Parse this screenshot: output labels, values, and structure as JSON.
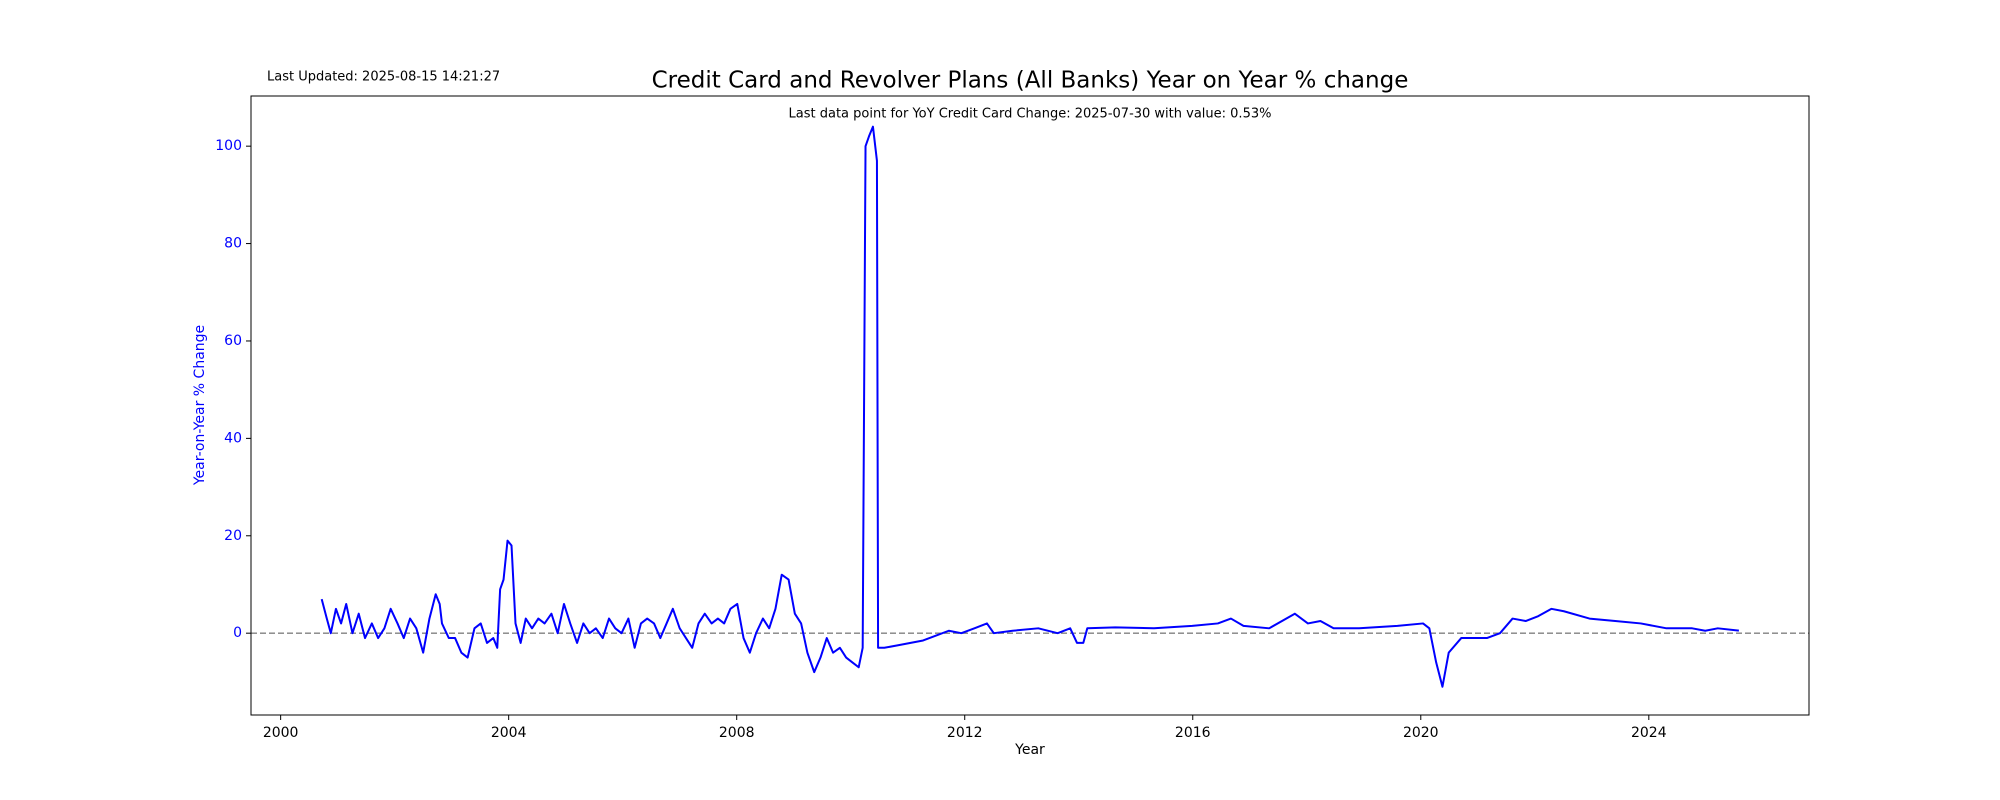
{
  "chart_data": {
    "type": "line",
    "title": "Credit Card and Revolver Plans (All Banks) Year on Year % change",
    "last_updated": "Last Updated: 2025-08-15 14:21:27",
    "annotation": "Last data point for YoY Credit Card Change: 2025-07-30 with value: 0.53%",
    "x_label": "Year",
    "y_label": "Year-on-Year % Change",
    "x": [
      2000.72,
      2000.81,
      2000.88,
      2000.97,
      2001.06,
      2001.15,
      2001.26,
      2001.37,
      2001.48,
      2001.6,
      2001.71,
      2001.82,
      2001.93,
      2002.05,
      2002.16,
      2002.27,
      2002.38,
      2002.5,
      2002.61,
      2002.72,
      2002.79,
      2002.83,
      2002.95,
      2003.06,
      2003.17,
      2003.28,
      2003.4,
      2003.51,
      2003.62,
      2003.73,
      2003.8,
      2003.85,
      2003.91,
      2003.98,
      2004.05,
      2004.12,
      2004.21,
      2004.3,
      2004.41,
      2004.52,
      2004.63,
      2004.75,
      2004.86,
      2004.97,
      2005.08,
      2005.2,
      2005.31,
      2005.42,
      2005.53,
      2005.65,
      2005.76,
      2005.87,
      2005.98,
      2006.1,
      2006.21,
      2006.32,
      2006.43,
      2006.55,
      2006.66,
      2006.77,
      2006.88,
      2007.0,
      2007.11,
      2007.22,
      2007.33,
      2007.44,
      2007.56,
      2007.67,
      2007.78,
      2007.89,
      2008.01,
      2008.12,
      2008.23,
      2008.34,
      2008.46,
      2008.57,
      2008.68,
      2008.79,
      2008.91,
      2009.02,
      2009.13,
      2009.24,
      2009.36,
      2009.47,
      2009.58,
      2009.69,
      2009.81,
      2009.92,
      2010.03,
      2010.14,
      2010.21,
      2010.26,
      2010.32,
      2010.39,
      2010.46,
      2010.48,
      2010.59,
      2010.82,
      2011.27,
      2011.72,
      2011.94,
      2012.17,
      2012.39,
      2012.51,
      2012.84,
      2013.29,
      2013.63,
      2013.85,
      2013.97,
      2014.08,
      2014.15,
      2014.64,
      2015.32,
      2015.99,
      2016.44,
      2016.67,
      2016.89,
      2017.34,
      2017.79,
      2018.02,
      2018.24,
      2018.47,
      2018.92,
      2019.59,
      2020.04,
      2020.15,
      2020.27,
      2020.38,
      2020.49,
      2020.71,
      2021.16,
      2021.39,
      2021.61,
      2021.84,
      2022.06,
      2022.29,
      2022.51,
      2022.96,
      2023.41,
      2023.86,
      2024.31,
      2024.76,
      2024.99,
      2025.21,
      2025.58
    ],
    "series": [
      {
        "name": "YoY Credit Card Change",
        "color": "#0000ff",
        "values": [
          7,
          3,
          0,
          5,
          2,
          6,
          0,
          4,
          -1,
          2,
          -1,
          1,
          5,
          2,
          -1,
          3,
          1,
          -4,
          3,
          8,
          6,
          2,
          -1,
          -1,
          -4,
          -5,
          1,
          2,
          -2,
          -1,
          -3,
          9,
          11,
          19,
          18,
          2,
          -2,
          3,
          1,
          3,
          2,
          4,
          0,
          6,
          2,
          -2,
          2,
          0,
          1,
          -1,
          3,
          1,
          0,
          3,
          -3,
          2,
          3,
          2,
          -1,
          2,
          5,
          1,
          -1,
          -3,
          2,
          4,
          2,
          3,
          2,
          5,
          6,
          -1,
          -4,
          0,
          3,
          1,
          5,
          12,
          11,
          4,
          2,
          -4,
          -8,
          -5,
          -1,
          -4,
          -3,
          -5,
          -6,
          -7,
          -3,
          100,
          102,
          104,
          97,
          -3,
          -3,
          -2.5,
          -1.5,
          0.5,
          0,
          1,
          2,
          0,
          0.5,
          1,
          0,
          1,
          -2,
          -2,
          1,
          1.2,
          1,
          1.5,
          2,
          3,
          1.5,
          1,
          4,
          2,
          2.5,
          1,
          1,
          1.5,
          2,
          1,
          -6,
          -11,
          -4,
          -1,
          -1,
          0,
          3,
          2.5,
          3.5,
          5,
          4.5,
          3,
          2.5,
          2,
          1,
          1,
          0.5,
          1,
          0.53
        ]
      }
    ],
    "reference_line": 0,
    "reference_color": "#808080",
    "axis_color": "#0000ff",
    "xlim": [
      1999.48,
      2026.81
    ],
    "ylim": [
      -16.8,
      110.3
    ],
    "xticks": [
      2000,
      2004,
      2008,
      2012,
      2016,
      2020,
      2024
    ],
    "yticks": [
      0,
      20,
      40,
      60,
      80,
      100
    ]
  }
}
